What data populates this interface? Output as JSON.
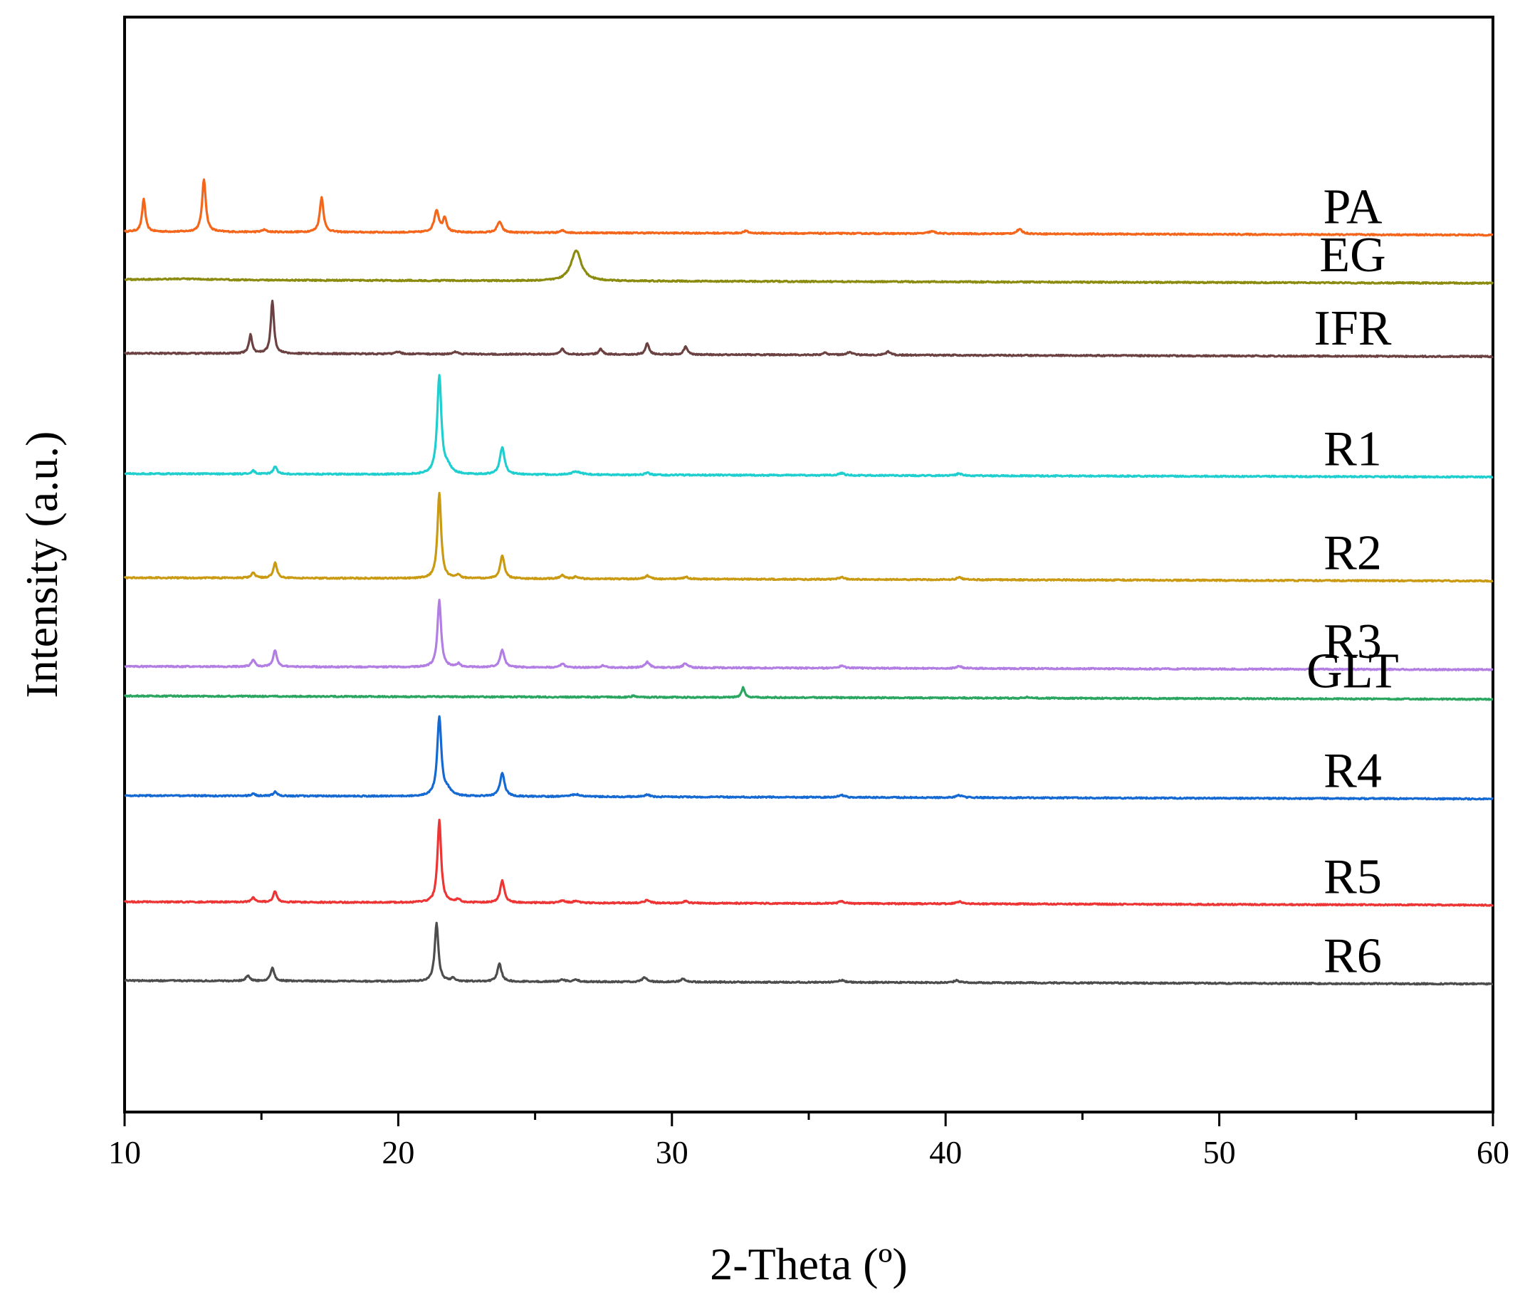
{
  "chart_data": {
    "type": "line",
    "title": "",
    "xlabel": "2-Theta (º)",
    "ylabel": "Intensity (a.u.)",
    "xlim": [
      10,
      60
    ],
    "ylim": [
      0,
      100
    ],
    "xticks": [
      10,
      20,
      30,
      40,
      50,
      60
    ],
    "xtick_labels": [
      "10",
      "20",
      "30",
      "40",
      "50",
      "60"
    ],
    "yticks_shown": false,
    "grid": false,
    "legend": "none; series labelled at right end",
    "series": [
      {
        "name": "PA",
        "color": "#f4661b",
        "baseline": 80.4,
        "tilt": 0.3,
        "peaks": [
          [
            10.7,
            3.0,
            0.07
          ],
          [
            12.9,
            4.8,
            0.08
          ],
          [
            15.1,
            0.2,
            0.1
          ],
          [
            17.2,
            3.2,
            0.08
          ],
          [
            21.4,
            2.0,
            0.1
          ],
          [
            21.7,
            1.3,
            0.08
          ],
          [
            23.7,
            1.0,
            0.1
          ],
          [
            26.0,
            0.2,
            0.1
          ],
          [
            32.7,
            0.2,
            0.1
          ],
          [
            39.5,
            0.2,
            0.15
          ],
          [
            42.7,
            0.4,
            0.12
          ]
        ]
      },
      {
        "name": "EG",
        "color": "#8b8b10",
        "baseline": 76.0,
        "tilt": 0.3,
        "peaks": [
          [
            26.5,
            2.8,
            0.22
          ],
          [
            12.0,
            0.1,
            1.5
          ]
        ]
      },
      {
        "name": "IFR",
        "color": "#6b4241",
        "baseline": 69.3,
        "tilt": 0.3,
        "peaks": [
          [
            14.6,
            1.7,
            0.07
          ],
          [
            15.4,
            4.8,
            0.07
          ],
          [
            20.0,
            0.2,
            0.1
          ],
          [
            22.1,
            0.2,
            0.08
          ],
          [
            26.0,
            0.5,
            0.08
          ],
          [
            27.4,
            0.5,
            0.08
          ],
          [
            29.1,
            1.0,
            0.08
          ],
          [
            30.5,
            0.7,
            0.08
          ],
          [
            35.6,
            0.2,
            0.1
          ],
          [
            36.5,
            0.3,
            0.1
          ],
          [
            37.9,
            0.3,
            0.1
          ]
        ]
      },
      {
        "name": "R1",
        "color": "#1fcfcf",
        "baseline": 58.3,
        "tilt": 0.3,
        "peaks": [
          [
            14.7,
            0.3,
            0.08
          ],
          [
            15.5,
            0.7,
            0.08
          ],
          [
            21.5,
            9.0,
            0.09
          ],
          [
            21.8,
            0.6,
            0.15
          ],
          [
            23.8,
            2.5,
            0.1
          ],
          [
            26.5,
            0.3,
            0.2
          ],
          [
            29.1,
            0.2,
            0.1
          ],
          [
            36.2,
            0.2,
            0.12
          ],
          [
            40.5,
            0.2,
            0.12
          ]
        ]
      },
      {
        "name": "R2",
        "color": "#c99a12",
        "baseline": 48.8,
        "tilt": 0.3,
        "peaks": [
          [
            14.7,
            0.5,
            0.08
          ],
          [
            15.5,
            1.4,
            0.08
          ],
          [
            21.5,
            7.8,
            0.08
          ],
          [
            22.2,
            0.3,
            0.08
          ],
          [
            23.8,
            2.1,
            0.09
          ],
          [
            26.0,
            0.3,
            0.1
          ],
          [
            26.5,
            0.2,
            0.1
          ],
          [
            29.1,
            0.3,
            0.1
          ],
          [
            30.5,
            0.2,
            0.1
          ],
          [
            36.2,
            0.2,
            0.12
          ],
          [
            40.5,
            0.2,
            0.12
          ]
        ]
      },
      {
        "name": "R3",
        "color": "#b27ee3",
        "baseline": 40.7,
        "tilt": 0.3,
        "peaks": [
          [
            14.7,
            0.6,
            0.08
          ],
          [
            15.5,
            1.5,
            0.08
          ],
          [
            21.5,
            6.1,
            0.08
          ],
          [
            22.2,
            0.3,
            0.08
          ],
          [
            23.8,
            1.6,
            0.09
          ],
          [
            26.0,
            0.3,
            0.1
          ],
          [
            27.5,
            0.2,
            0.1
          ],
          [
            29.1,
            0.5,
            0.1
          ],
          [
            30.5,
            0.4,
            0.1
          ],
          [
            36.2,
            0.2,
            0.12
          ],
          [
            40.5,
            0.2,
            0.12
          ]
        ]
      },
      {
        "name": "GLT",
        "color": "#2aa661",
        "baseline": 38.0,
        "tilt": 0.3,
        "peaks": [
          [
            28.6,
            0.15,
            0.08
          ],
          [
            32.6,
            0.9,
            0.07
          ],
          [
            43.0,
            0.1,
            0.1
          ]
        ]
      },
      {
        "name": "R4",
        "color": "#1569d2",
        "baseline": 28.9,
        "tilt": 0.3,
        "peaks": [
          [
            14.7,
            0.2,
            0.08
          ],
          [
            15.5,
            0.4,
            0.08
          ],
          [
            21.5,
            7.2,
            0.09
          ],
          [
            21.8,
            0.5,
            0.15
          ],
          [
            23.8,
            2.1,
            0.1
          ],
          [
            26.5,
            0.2,
            0.2
          ],
          [
            29.1,
            0.2,
            0.1
          ],
          [
            36.2,
            0.2,
            0.12
          ],
          [
            40.5,
            0.2,
            0.12
          ]
        ]
      },
      {
        "name": "R5",
        "color": "#ec3534",
        "baseline": 19.2,
        "tilt": 0.3,
        "peaks": [
          [
            14.7,
            0.4,
            0.08
          ],
          [
            15.5,
            1.0,
            0.08
          ],
          [
            21.5,
            7.5,
            0.08
          ],
          [
            22.2,
            0.3,
            0.08
          ],
          [
            23.8,
            2.0,
            0.09
          ],
          [
            26.0,
            0.2,
            0.1
          ],
          [
            26.5,
            0.2,
            0.1
          ],
          [
            29.1,
            0.3,
            0.1
          ],
          [
            30.5,
            0.2,
            0.1
          ],
          [
            36.2,
            0.2,
            0.12
          ],
          [
            40.5,
            0.2,
            0.12
          ]
        ]
      },
      {
        "name": "R6",
        "color": "#4d4d4d",
        "baseline": 12.0,
        "tilt": 0.3,
        "peaks": [
          [
            14.5,
            0.5,
            0.08
          ],
          [
            15.4,
            1.2,
            0.08
          ],
          [
            21.4,
            5.3,
            0.08
          ],
          [
            22.0,
            0.3,
            0.08
          ],
          [
            23.7,
            1.6,
            0.09
          ],
          [
            26.0,
            0.2,
            0.1
          ],
          [
            26.5,
            0.2,
            0.1
          ],
          [
            29.0,
            0.4,
            0.1
          ],
          [
            30.4,
            0.3,
            0.1
          ],
          [
            36.2,
            0.2,
            0.12
          ],
          [
            40.4,
            0.2,
            0.12
          ]
        ]
      }
    ]
  }
}
